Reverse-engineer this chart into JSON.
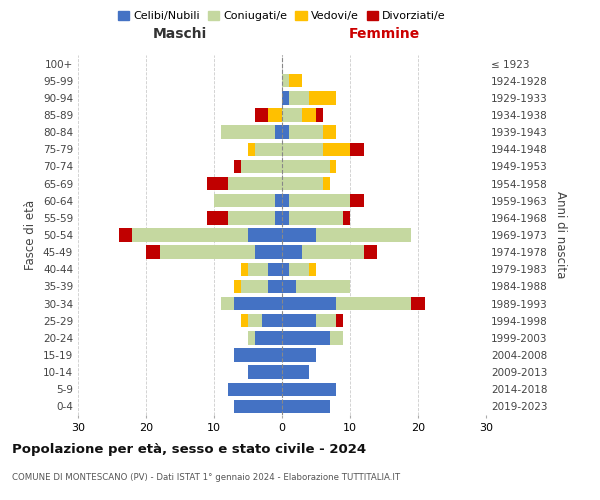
{
  "age_groups": [
    "0-4",
    "5-9",
    "10-14",
    "15-19",
    "20-24",
    "25-29",
    "30-34",
    "35-39",
    "40-44",
    "45-49",
    "50-54",
    "55-59",
    "60-64",
    "65-69",
    "70-74",
    "75-79",
    "80-84",
    "85-89",
    "90-94",
    "95-99",
    "100+"
  ],
  "birth_years": [
    "2019-2023",
    "2014-2018",
    "2009-2013",
    "2004-2008",
    "1999-2003",
    "1994-1998",
    "1989-1993",
    "1984-1988",
    "1979-1983",
    "1974-1978",
    "1969-1973",
    "1964-1968",
    "1959-1963",
    "1954-1958",
    "1949-1953",
    "1944-1948",
    "1939-1943",
    "1934-1938",
    "1929-1933",
    "1924-1928",
    "≤ 1923"
  ],
  "male": {
    "celibi": [
      7,
      8,
      5,
      7,
      4,
      3,
      7,
      2,
      2,
      4,
      5,
      1,
      1,
      0,
      0,
      0,
      1,
      0,
      0,
      0,
      0
    ],
    "coniugati": [
      0,
      0,
      0,
      0,
      1,
      2,
      2,
      4,
      3,
      14,
      17,
      7,
      9,
      8,
      6,
      4,
      8,
      0,
      0,
      0,
      0
    ],
    "vedovi": [
      0,
      0,
      0,
      0,
      0,
      1,
      0,
      1,
      1,
      0,
      0,
      0,
      0,
      0,
      0,
      1,
      0,
      2,
      0,
      0,
      0
    ],
    "divorziati": [
      0,
      0,
      0,
      0,
      0,
      0,
      0,
      0,
      0,
      2,
      2,
      3,
      0,
      3,
      1,
      0,
      0,
      2,
      0,
      0,
      0
    ]
  },
  "female": {
    "nubili": [
      7,
      8,
      4,
      5,
      7,
      5,
      8,
      2,
      1,
      3,
      5,
      1,
      1,
      0,
      0,
      0,
      1,
      0,
      1,
      0,
      0
    ],
    "coniugate": [
      0,
      0,
      0,
      0,
      2,
      3,
      11,
      8,
      3,
      9,
      14,
      8,
      9,
      6,
      7,
      6,
      5,
      3,
      3,
      1,
      0
    ],
    "vedove": [
      0,
      0,
      0,
      0,
      0,
      0,
      0,
      0,
      1,
      0,
      0,
      0,
      0,
      1,
      1,
      4,
      2,
      2,
      4,
      2,
      0
    ],
    "divorziate": [
      0,
      0,
      0,
      0,
      0,
      1,
      2,
      0,
      0,
      2,
      0,
      1,
      2,
      0,
      0,
      2,
      0,
      1,
      0,
      0,
      0
    ]
  },
  "colors": {
    "celibi": "#4472c4",
    "coniugati": "#c5d8a0",
    "vedovi": "#ffc000",
    "divorziati": "#c00000"
  },
  "title": "Popolazione per età, sesso e stato civile - 2024",
  "subtitle": "COMUNE DI MONTESCANO (PV) - Dati ISTAT 1° gennaio 2024 - Elaborazione TUTTITALIA.IT",
  "xlabel_left": "Maschi",
  "xlabel_right": "Femmine",
  "ylabel_left": "Fasce di età",
  "ylabel_right": "Anni di nascita",
  "xlim": 30,
  "legend_labels": [
    "Celibi/Nubili",
    "Coniugati/e",
    "Vedovi/e",
    "Divorziati/e"
  ],
  "bg_color": "#ffffff"
}
